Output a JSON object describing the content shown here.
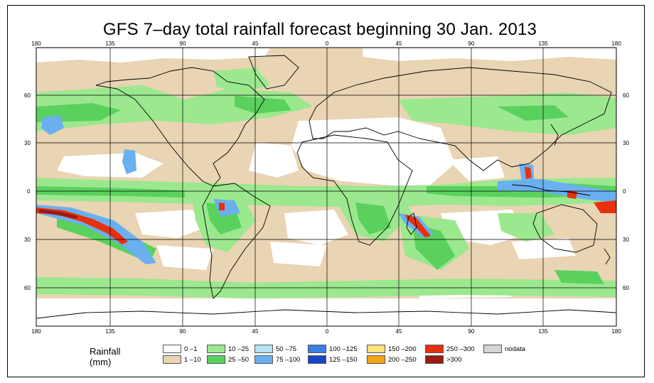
{
  "title": "GFS 7–day total rainfall forecast beginning 30 Jan. 2013",
  "axes": {
    "lon_ticks": [
      "180",
      "135",
      "90",
      "45",
      "0",
      "45",
      "90",
      "135",
      "180"
    ],
    "lat_ticks_left": [
      "60",
      "30",
      "0",
      "30",
      "60"
    ],
    "lat_ticks_right": [
      "60",
      "30",
      "0",
      "30",
      "60"
    ]
  },
  "legend": {
    "title": "Rainfall (mm)",
    "items": [
      {
        "label": "0 –1",
        "color": "#ffffff"
      },
      {
        "label": "1 –10",
        "color": "#e9d4b3"
      },
      {
        "label": "10 –25",
        "color": "#9be88e"
      },
      {
        "label": "25 –50",
        "color": "#5ad15d"
      },
      {
        "label": "50 –75",
        "color": "#b6e2f6"
      },
      {
        "label": "75 –100",
        "color": "#6ab0f0"
      },
      {
        "label": "100 –125",
        "color": "#3b7fe6"
      },
      {
        "label": "125 –150",
        "color": "#1447c8"
      },
      {
        "label": "150 –200",
        "color": "#ffe07a"
      },
      {
        "label": "200 –250",
        "color": "#f5a30e"
      },
      {
        "label": "250 –300",
        "color": "#e8310c"
      },
      {
        "label": ">300",
        "color": "#9c1a12"
      },
      {
        "label": "nodata",
        "color": "#d4d4d4"
      }
    ]
  },
  "colors": {
    "ocean_dry": "#ffffff",
    "light": "#e9d4b3",
    "moderate": "#9be88e",
    "heavy": "#5ad15d",
    "very_heavy": "#6ab0f0",
    "extreme": "#e8310c",
    "extreme_dark": "#9c1a12",
    "coast": "#000000"
  }
}
